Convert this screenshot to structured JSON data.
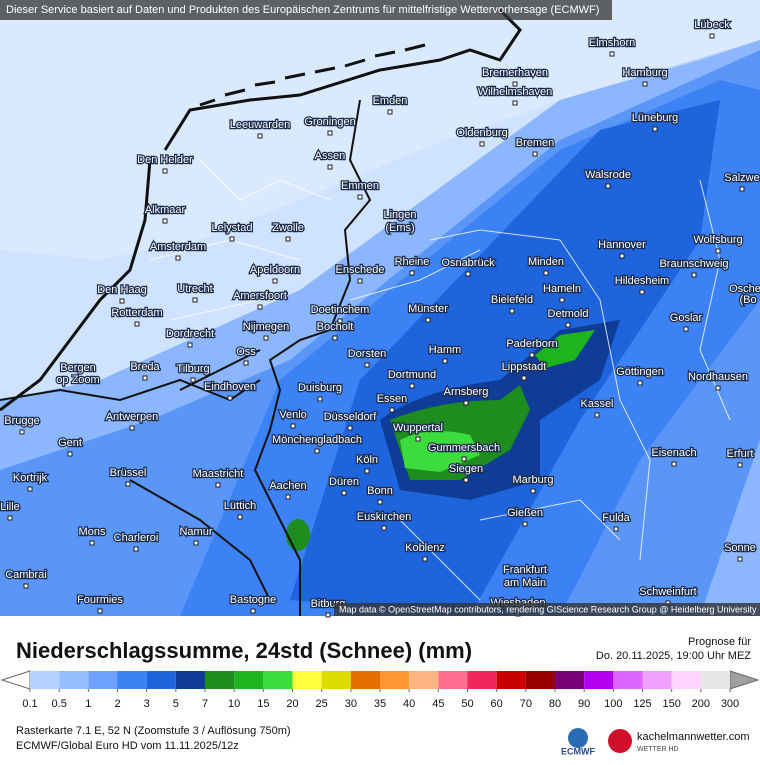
{
  "header": {
    "notice": "Dieser Service basiert auf Daten und Produkten des Europäischen Zentrums für mittelfristige Wettervorhersage (ECMWF)"
  },
  "map": {
    "attribution": "Map data © OpenStreetMap contributors, rendering GIScience Research Group @ Heidelberg University",
    "cities": [
      "Lübeck",
      "Elmshorn",
      "Hamburg",
      "Bremerhaven",
      "Wilhelmshaven",
      "Emden",
      "Leeuwarden",
      "Groningen",
      "Assen",
      "Oldenburg",
      "Bremen",
      "Lüneburg",
      "Den Helder",
      "Emmen",
      "Walsrode",
      "Salzwe",
      "Alkmaar",
      "Lelystad",
      "Zwolle",
      "Lingen",
      "(Ems)",
      "Amsterdam",
      "Hannover",
      "Wolfsburg",
      "Rheine",
      "Osnabrück",
      "Minden",
      "Enschede",
      "Apeldoorn",
      "Braunschweig",
      "Hildesheim",
      "Den Haag",
      "Utrecht",
      "Amersfoort",
      "Bielefeld",
      "Hameln",
      "Osche",
      "(Bo",
      "Rotterdam",
      "Doetinchem",
      "Münster",
      "Detmold",
      "Goslar",
      "Nijmegen",
      "Bocholt",
      "Dordrecht",
      "Bergen",
      "op Zoom",
      "Oss",
      "Dorsten",
      "Hamm",
      "Paderborn",
      "Breda",
      "Tilburg",
      "Lippstadt",
      "Dortmund",
      "Göttingen",
      "Nordhausen",
      "Eindhoven",
      "Duisburg",
      "Arnsberg",
      "Essen",
      "Kassel",
      "Venlo",
      "Düsseldorf",
      "Brugge",
      "Antwerpen",
      "Wuppertal",
      "Gent",
      "Mönchengladbach",
      "Gummersbach",
      "Eisenach",
      "Erfurt",
      "Köln",
      "Siegen",
      "Brüssel",
      "Maastricht",
      "Kortrijk",
      "Düren",
      "Marburg",
      "Aachen",
      "Bonn",
      "Lille",
      "Lüttich",
      "Gießen",
      "Euskirchen",
      "Fulda",
      "Mons",
      "Namur",
      "Charleroi",
      "Koblenz",
      "Sonne",
      "Cambrai",
      "Frankfurt",
      "am Main",
      "Schweinfurt",
      "Fourmies",
      "Bastogne",
      "Bitburg",
      "Wiesbaden"
    ]
  },
  "footer": {
    "title": "Niederschlagssumme, 24std (Schnee) (mm)",
    "forecast_label": "Prognose für",
    "forecast_time": "Do. 20.11.2025, 19:00 Uhr MEZ",
    "raster": "Rasterkarte 7.1 E, 52 N  (Zoomstufe 3 / Auflösung 750m)",
    "model": "ECMWF/Global Euro HD vom  11.11.2025/12z",
    "logo_ecmwf": "ECMWF",
    "logo_site": "kachelmannwetter.com",
    "logo_sub": "WETTER HD"
  },
  "legend": {
    "ticks": [
      0.1,
      0.5,
      1,
      2,
      3,
      5,
      7,
      10,
      15,
      20,
      25,
      30,
      35,
      40,
      45,
      50,
      60,
      70,
      80,
      90,
      100,
      125,
      150,
      200,
      300
    ],
    "colors": [
      "#b4d2ff",
      "#96beff",
      "#6ea0ff",
      "#3c82f5",
      "#1e64dc",
      "#0f3c96",
      "#1e8c1e",
      "#1eb41e",
      "#3cdc3c",
      "#ffff3c",
      "#dcdc00",
      "#e66e00",
      "#ff9632",
      "#ffb482",
      "#ff6e8c",
      "#f0285a",
      "#c80000",
      "#960000",
      "#780078",
      "#b400f0",
      "#dc64ff",
      "#f0a0ff",
      "#ffd2ff",
      "#e6e6e6"
    ]
  }
}
